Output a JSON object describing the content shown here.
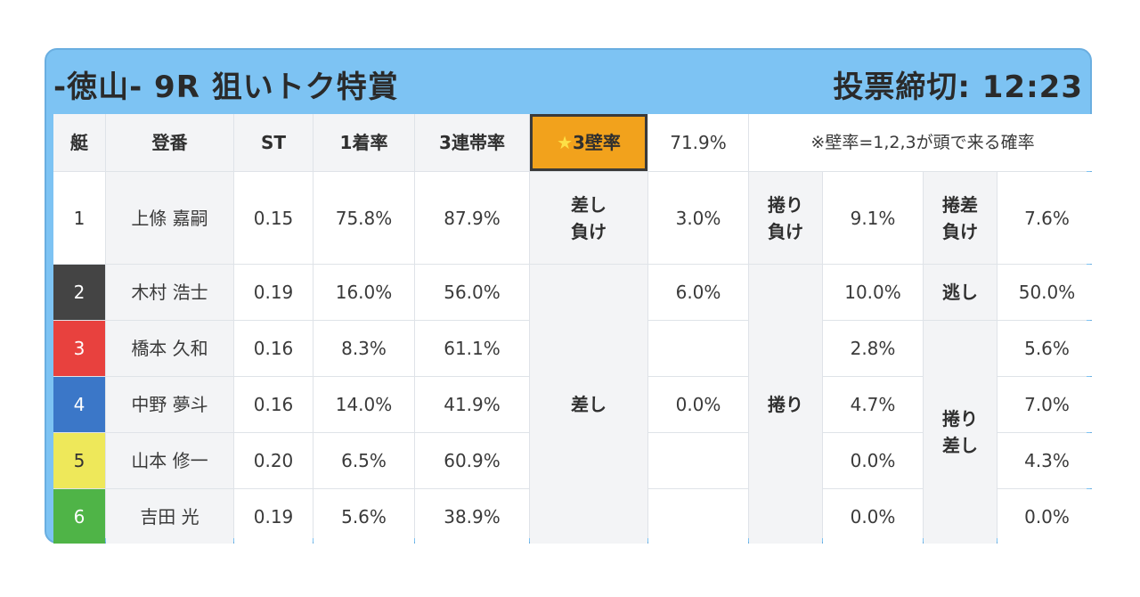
{
  "header": {
    "race_title": "-徳山- 9R 狙いトク特賞",
    "deadline": "投票締切: 12:23"
  },
  "columns": {
    "boat": "艇",
    "name": "登番",
    "st": "ST",
    "first_rate": "1着率",
    "trio_rate": "3連帯率",
    "wall_star": "★",
    "wall_label": "3壁率",
    "wall_value": "71.9%",
    "note": "※壁率=1,2,3が頭で来る確率"
  },
  "racers": [
    {
      "boat": "1",
      "name": "上條 嘉嗣",
      "st": "0.15",
      "first": "75.8%",
      "trio": "87.9%"
    },
    {
      "boat": "2",
      "name": "木村 浩士",
      "st": "0.19",
      "first": "16.0%",
      "trio": "56.0%"
    },
    {
      "boat": "3",
      "name": "橋本 久和",
      "st": "0.16",
      "first": "8.3%",
      "trio": "61.1%"
    },
    {
      "boat": "4",
      "name": "中野 夢斗",
      "st": "0.16",
      "first": "14.0%",
      "trio": "41.9%"
    },
    {
      "boat": "5",
      "name": "山本 修一",
      "st": "0.20",
      "first": "6.5%",
      "trio": "60.9%"
    },
    {
      "boat": "6",
      "name": "吉田 光",
      "st": "0.19",
      "first": "5.6%",
      "trio": "38.9%"
    }
  ],
  "patterns": {
    "sashi_make": {
      "line1": "差し",
      "line2": "負け",
      "value": "3.0%"
    },
    "makuri_make": {
      "line1": "捲り",
      "line2": "負け",
      "value": "9.1%"
    },
    "makurisashi_make": {
      "line1": "捲差",
      "line2": "負け",
      "value": "7.6%"
    },
    "nige": {
      "label": "逃し",
      "value": "50.0%"
    },
    "sashi": {
      "label": "差し",
      "values": [
        "6.0%",
        "",
        "0.0%",
        "",
        ""
      ]
    },
    "makuri": {
      "label": "捲り",
      "values": [
        "10.0%",
        "2.8%",
        "4.7%",
        "0.0%",
        "0.0%"
      ]
    },
    "makurisashi": {
      "line1": "捲り",
      "line2": "差し",
      "values": [
        "5.6%",
        "7.0%",
        "4.3%",
        "0.0%"
      ]
    }
  },
  "colors": {
    "card_blue": "#7dc3f3",
    "wall_orange": "#f2a21c",
    "boat_1": "#ffffff",
    "boat_2": "#444444",
    "boat_3": "#e8413e",
    "boat_4": "#3b77c8",
    "boat_5": "#eee85a",
    "boat_6": "#4fb447"
  }
}
